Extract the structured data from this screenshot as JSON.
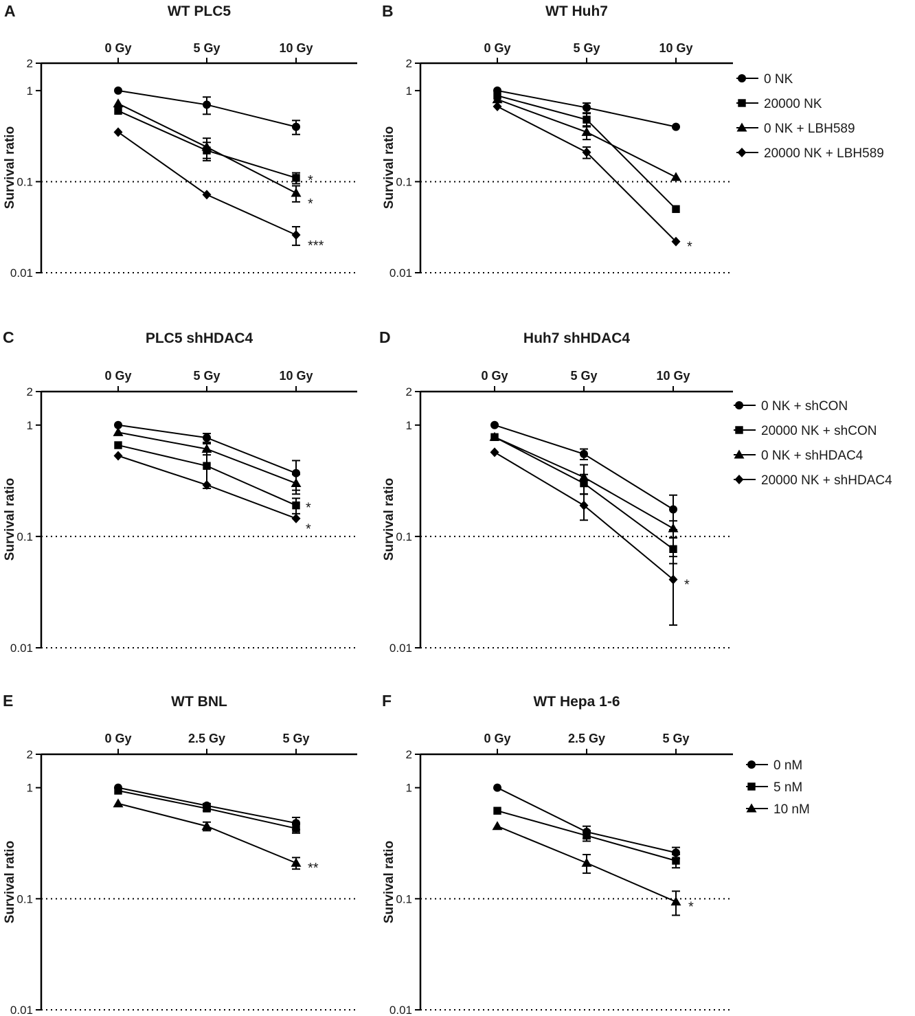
{
  "chart_data": [
    {
      "type": "line",
      "panel": "A",
      "title": "WT PLC5",
      "ylabel": "Survival ratio",
      "xlabel": "",
      "yscale": "log",
      "ylim": [
        0.01,
        2
      ],
      "yticks": [
        "2",
        "1",
        "0.1",
        "0.01"
      ],
      "reference_lines": [
        0.1,
        0.01
      ],
      "categories": [
        "0 Gy",
        "5 Gy",
        "10 Gy"
      ],
      "series": [
        {
          "name": "0 NK",
          "marker": "circle",
          "values": [
            1.0,
            0.7,
            0.4
          ],
          "errors": [
            0,
            0.15,
            0.07
          ]
        },
        {
          "name": "20000 NK",
          "marker": "square",
          "values": [
            0.6,
            0.22,
            0.11
          ],
          "errors": [
            0,
            0.05,
            0.015
          ]
        },
        {
          "name": "0 NK + LBH589",
          "marker": "triangle",
          "values": [
            0.72,
            0.24,
            0.075
          ],
          "errors": [
            0,
            0.06,
            0.015
          ]
        },
        {
          "name": "20000 NK + LBH589",
          "marker": "diamond",
          "values": [
            0.35,
            0.072,
            0.026
          ],
          "errors": [
            0,
            0,
            0.006
          ]
        }
      ],
      "annotations": [
        "*",
        "*",
        "***"
      ]
    },
    {
      "type": "line",
      "panel": "B",
      "title": "WT Huh7",
      "ylabel": "Survival ratio",
      "xlabel": "",
      "yscale": "log",
      "ylim": [
        0.01,
        2
      ],
      "yticks": [
        "2",
        "1",
        "0.1",
        "0.01"
      ],
      "reference_lines": [
        0.1,
        0.01
      ],
      "categories": [
        "0 Gy",
        "5 Gy",
        "10 Gy"
      ],
      "legend_position": "right",
      "legend": [
        "0 NK",
        "20000 NK",
        "0 NK + LBH589",
        "20000 NK + LBH589"
      ],
      "series": [
        {
          "name": "0 NK",
          "marker": "circle",
          "values": [
            1.0,
            0.65,
            0.4
          ],
          "errors": [
            0,
            0.08,
            0
          ]
        },
        {
          "name": "20000 NK",
          "marker": "square",
          "values": [
            0.88,
            0.48,
            0.05
          ],
          "errors": [
            0,
            0.08,
            0
          ]
        },
        {
          "name": "0 NK + LBH589",
          "marker": "triangle",
          "values": [
            0.8,
            0.35,
            0.112
          ],
          "errors": [
            0,
            0.06,
            0
          ]
        },
        {
          "name": "20000 NK + LBH589",
          "marker": "diamond",
          "values": [
            0.67,
            0.21,
            0.022
          ],
          "errors": [
            0,
            0.03,
            0
          ]
        }
      ],
      "annotations": [
        "*"
      ]
    },
    {
      "type": "line",
      "panel": "C",
      "title": "PLC5 shHDAC4",
      "ylabel": "Survival ratio",
      "xlabel": "",
      "yscale": "log",
      "ylim": [
        0.01,
        2
      ],
      "yticks": [
        "2",
        "1",
        "0.1",
        "0.01"
      ],
      "reference_lines": [
        0.1,
        0.01
      ],
      "categories": [
        "0 Gy",
        "5 Gy",
        "10 Gy"
      ],
      "series": [
        {
          "name": "0 NK + shCON",
          "marker": "circle",
          "values": [
            1.0,
            0.77,
            0.37
          ],
          "errors": [
            0,
            0.07,
            0.11
          ]
        },
        {
          "name": "20000 NK + shCON",
          "marker": "square",
          "values": [
            0.66,
            0.43,
            0.19
          ],
          "errors": [
            0,
            0.16,
            0.03
          ]
        },
        {
          "name": "0 NK + shHDAC4",
          "marker": "triangle",
          "values": [
            0.86,
            0.61,
            0.3
          ],
          "errors": [
            0,
            0.07,
            0.06
          ]
        },
        {
          "name": "20000 NK + shHDAC4",
          "marker": "diamond",
          "values": [
            0.53,
            0.29,
            0.145
          ],
          "errors": [
            0,
            0,
            0
          ]
        }
      ],
      "annotations": [
        "*",
        "*"
      ]
    },
    {
      "type": "line",
      "panel": "D",
      "title": "Huh7 shHDAC4",
      "ylabel": "Survival ratio",
      "xlabel": "",
      "yscale": "log",
      "ylim": [
        0.01,
        2
      ],
      "yticks": [
        "2",
        "1",
        "0.1",
        "0.01"
      ],
      "reference_lines": [
        0.1,
        0.01
      ],
      "categories": [
        "0 Gy",
        "5 Gy",
        "10 Gy"
      ],
      "legend_position": "right",
      "legend": [
        "0 NK + shCON",
        "20000 NK + shCON",
        "0 NK + shHDAC4",
        "20000 NK + shHDAC4"
      ],
      "series": [
        {
          "name": "0 NK + shCON",
          "marker": "circle",
          "values": [
            1.0,
            0.55,
            0.175
          ],
          "errors": [
            0,
            0.06,
            0.06
          ]
        },
        {
          "name": "20000 NK + shCON",
          "marker": "square",
          "values": [
            0.78,
            0.3,
            0.077
          ],
          "errors": [
            0,
            0.06,
            0.02
          ]
        },
        {
          "name": "0 NK + shHDAC4",
          "marker": "triangle",
          "values": [
            0.78,
            0.34,
            0.118
          ],
          "errors": [
            0,
            0.1,
            0.02
          ]
        },
        {
          "name": "20000 NK + shHDAC4",
          "marker": "diamond",
          "values": [
            0.57,
            0.19,
            0.041
          ],
          "errors": [
            0,
            0.05,
            0.025
          ]
        }
      ],
      "annotations": [
        "*"
      ]
    },
    {
      "type": "line",
      "panel": "E",
      "title": "WT BNL",
      "ylabel": "Survival ratio",
      "xlabel": "",
      "yscale": "log",
      "ylim": [
        0.01,
        2
      ],
      "yticks": [
        "2",
        "1",
        "0.1",
        "0.01"
      ],
      "reference_lines": [
        0.1,
        0.01
      ],
      "categories": [
        "0 Gy",
        "2.5 Gy",
        "5 Gy"
      ],
      "series": [
        {
          "name": "0 nM",
          "marker": "circle",
          "values": [
            1.0,
            0.69,
            0.48
          ],
          "errors": [
            0,
            0.03,
            0.06
          ]
        },
        {
          "name": "5 nM",
          "marker": "square",
          "values": [
            0.94,
            0.65,
            0.43
          ],
          "errors": [
            0,
            0.03,
            0.04
          ]
        },
        {
          "name": "10 nM",
          "marker": "triangle",
          "values": [
            0.72,
            0.45,
            0.21
          ],
          "errors": [
            0,
            0.04,
            0.025
          ]
        }
      ],
      "annotations": [
        "**"
      ]
    },
    {
      "type": "line",
      "panel": "F",
      "title": "WT Hepa 1-6",
      "ylabel": "Survival ratio",
      "xlabel": "",
      "yscale": "log",
      "ylim": [
        0.01,
        2
      ],
      "yticks": [
        "2",
        "1",
        "0.1",
        "0.01"
      ],
      "reference_lines": [
        0.1,
        0.01
      ],
      "categories": [
        "0 Gy",
        "2.5 Gy",
        "5 Gy"
      ],
      "legend_position": "right",
      "legend": [
        "0 nM",
        "5 nM",
        "10 nM"
      ],
      "series": [
        {
          "name": "0 nM",
          "marker": "circle",
          "values": [
            1.0,
            0.4,
            0.26
          ],
          "errors": [
            0,
            0.05,
            0.03
          ]
        },
        {
          "name": "5 nM",
          "marker": "square",
          "values": [
            0.62,
            0.37,
            0.22
          ],
          "errors": [
            0,
            0.04,
            0.03
          ]
        },
        {
          "name": "10 nM",
          "marker": "triangle",
          "values": [
            0.45,
            0.21,
            0.094
          ],
          "errors": [
            0,
            0.04,
            0.023
          ]
        }
      ],
      "annotations": [
        "*"
      ]
    }
  ]
}
